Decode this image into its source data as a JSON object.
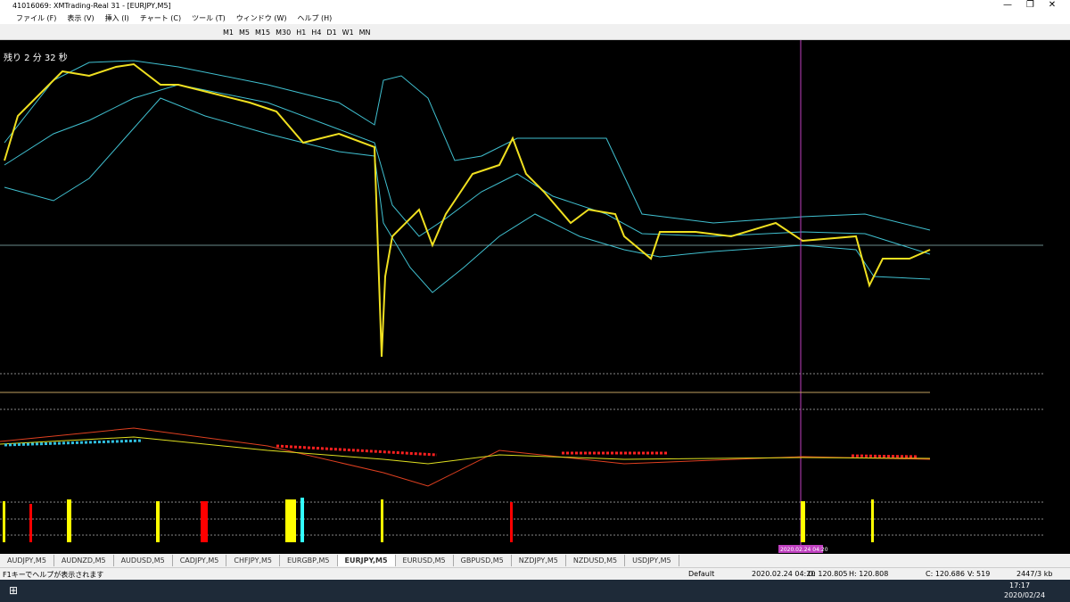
{
  "window": {
    "title": "41016069: XMTrading-Real 31 - [EURJPY,M5]"
  },
  "menu": [
    "ファイル (F)",
    "表示 (V)",
    "挿入 (I)",
    "チャート (C)",
    "ツール (T)",
    "ウィンドウ (W)",
    "ヘルプ (H)"
  ],
  "timeframes": [
    "M1",
    "M5",
    "M15",
    "M30",
    "H1",
    "H4",
    "D1",
    "W1",
    "MN"
  ],
  "chart": {
    "countdown": "残り 2 分 32 秒",
    "cursor_time": "2020.02.24 04:20"
  },
  "tabs": [
    "AUDJPY,M5",
    "AUDNZD,M5",
    "AUDUSD,M5",
    "CADJPY,M5",
    "CHFJPY,M5",
    "EURGBP,M5",
    "EURJPY,M5",
    "EURUSD,M5",
    "GBPUSD,M5",
    "NZDJPY,M5",
    "NZDUSD,M5",
    "USDJPY,M5"
  ],
  "status": {
    "help": "F1キーでヘルプが表示されます",
    "profile": "Default",
    "time": "2020.02.24 04:20",
    "open": "O: 120.805",
    "high": "H: 120.808",
    "close": "C: 120.686",
    "volume": "V: 519",
    "traffic": "2447/3 kb"
  },
  "taskbar": {
    "clock": "17:17",
    "date": "2020/02/24"
  }
}
